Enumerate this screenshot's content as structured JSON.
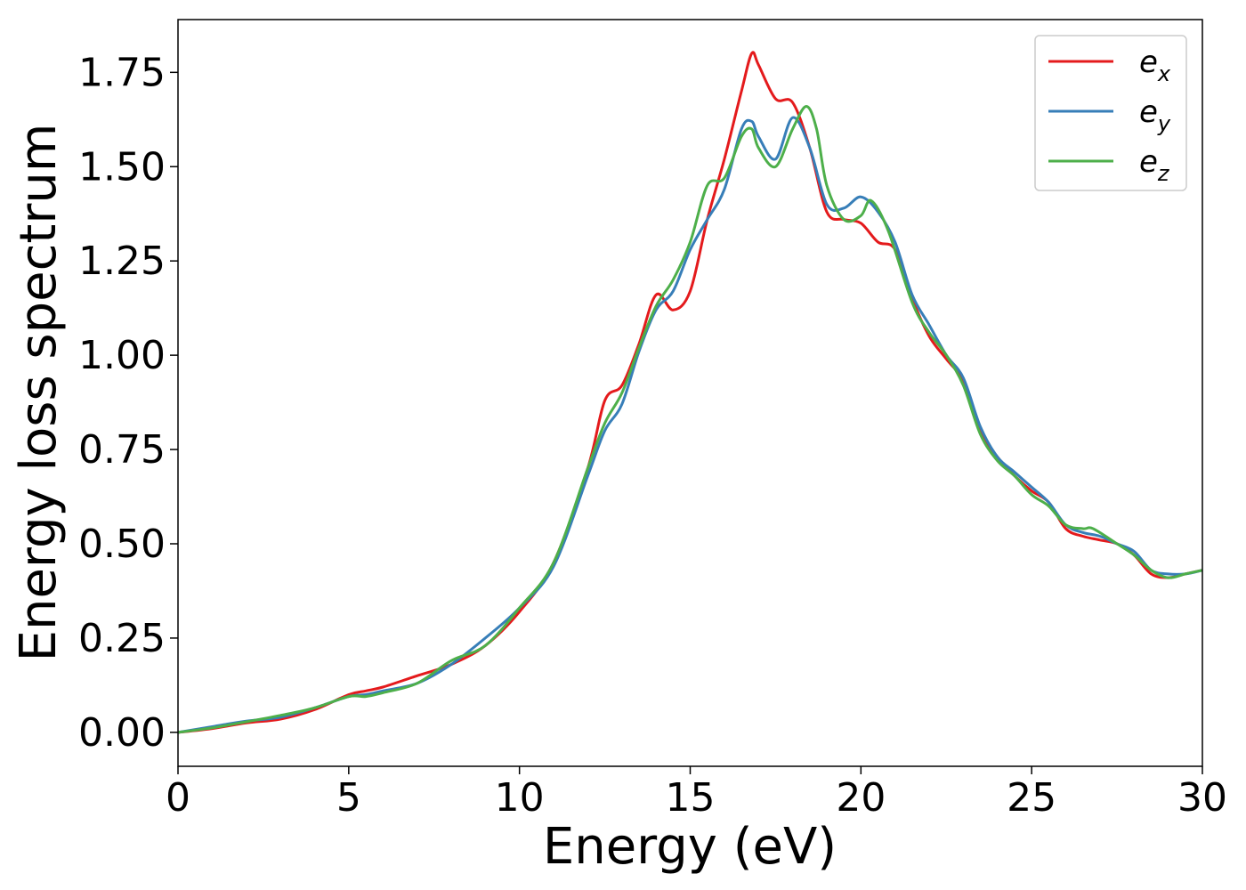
{
  "chart_data": {
    "type": "line",
    "title": "",
    "xlabel": "Energy (eV)",
    "ylabel": "Energy loss spectrum",
    "xlim": [
      0,
      30
    ],
    "ylim": [
      -0.09,
      1.89
    ],
    "xticks": [
      0,
      5,
      10,
      15,
      20,
      25,
      30
    ],
    "xtick_labels": [
      "0",
      "5",
      "10",
      "15",
      "20",
      "25",
      "30"
    ],
    "yticks": [
      0,
      0.25,
      0.5,
      0.75,
      1.0,
      1.25,
      1.5,
      1.75
    ],
    "ytick_labels": [
      "0.00",
      "0.25",
      "0.50",
      "0.75",
      "1.00",
      "1.25",
      "1.50",
      "1.75"
    ],
    "grid": false,
    "legend_position": "top-right",
    "series": [
      {
        "name": "e_x",
        "label_main": "e",
        "label_sub": "x",
        "color": "#e41a1c",
        "points": [
          [
            0,
            0
          ],
          [
            1,
            0.01
          ],
          [
            2,
            0.025
          ],
          [
            3,
            0.035
          ],
          [
            4,
            0.06
          ],
          [
            5,
            0.1
          ],
          [
            5.5,
            0.11
          ],
          [
            6,
            0.12
          ],
          [
            7,
            0.15
          ],
          [
            8,
            0.18
          ],
          [
            9,
            0.23
          ],
          [
            10,
            0.32
          ],
          [
            11,
            0.45
          ],
          [
            12,
            0.7
          ],
          [
            12.5,
            0.88
          ],
          [
            13,
            0.92
          ],
          [
            13.5,
            1.03
          ],
          [
            14,
            1.16
          ],
          [
            14.5,
            1.12
          ],
          [
            15,
            1.17
          ],
          [
            15.5,
            1.36
          ],
          [
            16,
            1.52
          ],
          [
            16.5,
            1.7
          ],
          [
            16.8,
            1.8
          ],
          [
            17,
            1.77
          ],
          [
            17.5,
            1.68
          ],
          [
            18,
            1.67
          ],
          [
            18.5,
            1.55
          ],
          [
            19,
            1.38
          ],
          [
            19.5,
            1.36
          ],
          [
            20,
            1.35
          ],
          [
            20.5,
            1.3
          ],
          [
            21,
            1.28
          ],
          [
            21.5,
            1.15
          ],
          [
            22,
            1.05
          ],
          [
            22.5,
            0.99
          ],
          [
            23,
            0.93
          ],
          [
            23.5,
            0.8
          ],
          [
            24,
            0.73
          ],
          [
            24.5,
            0.68
          ],
          [
            25,
            0.64
          ],
          [
            25.5,
            0.61
          ],
          [
            26,
            0.54
          ],
          [
            26.5,
            0.52
          ],
          [
            27,
            0.51
          ],
          [
            27.5,
            0.5
          ],
          [
            28,
            0.47
          ],
          [
            28.5,
            0.42
          ],
          [
            29,
            0.41
          ],
          [
            29.5,
            0.42
          ],
          [
            30,
            0.43
          ]
        ]
      },
      {
        "name": "e_y",
        "label_main": "e",
        "label_sub": "y",
        "color": "#377eb8",
        "points": [
          [
            0,
            0
          ],
          [
            1,
            0.015
          ],
          [
            2,
            0.03
          ],
          [
            3,
            0.04
          ],
          [
            4,
            0.065
          ],
          [
            5,
            0.095
          ],
          [
            5.5,
            0.1
          ],
          [
            6,
            0.11
          ],
          [
            7,
            0.13
          ],
          [
            8,
            0.18
          ],
          [
            9,
            0.25
          ],
          [
            10,
            0.33
          ],
          [
            11,
            0.44
          ],
          [
            12,
            0.68
          ],
          [
            12.5,
            0.8
          ],
          [
            13,
            0.87
          ],
          [
            13.5,
            1.01
          ],
          [
            14,
            1.12
          ],
          [
            14.5,
            1.17
          ],
          [
            15,
            1.28
          ],
          [
            15.5,
            1.36
          ],
          [
            16,
            1.44
          ],
          [
            16.5,
            1.6
          ],
          [
            16.8,
            1.62
          ],
          [
            17,
            1.58
          ],
          [
            17.5,
            1.52
          ],
          [
            18,
            1.63
          ],
          [
            18.5,
            1.55
          ],
          [
            19,
            1.4
          ],
          [
            19.5,
            1.39
          ],
          [
            20,
            1.42
          ],
          [
            20.5,
            1.38
          ],
          [
            21,
            1.3
          ],
          [
            21.5,
            1.16
          ],
          [
            22,
            1.08
          ],
          [
            22.5,
            1.0
          ],
          [
            23,
            0.94
          ],
          [
            23.5,
            0.81
          ],
          [
            24,
            0.73
          ],
          [
            24.5,
            0.69
          ],
          [
            25,
            0.65
          ],
          [
            25.5,
            0.61
          ],
          [
            26,
            0.55
          ],
          [
            26.5,
            0.53
          ],
          [
            27,
            0.52
          ],
          [
            27.5,
            0.5
          ],
          [
            28,
            0.48
          ],
          [
            28.5,
            0.43
          ],
          [
            29,
            0.42
          ],
          [
            29.5,
            0.42
          ],
          [
            30,
            0.43
          ]
        ]
      },
      {
        "name": "e_z",
        "label_main": "e",
        "label_sub": "z",
        "color": "#4daf4a",
        "points": [
          [
            0,
            0
          ],
          [
            1,
            0.012
          ],
          [
            2,
            0.028
          ],
          [
            3,
            0.045
          ],
          [
            4,
            0.065
          ],
          [
            5,
            0.095
          ],
          [
            5.5,
            0.095
          ],
          [
            6,
            0.105
          ],
          [
            7,
            0.13
          ],
          [
            8,
            0.19
          ],
          [
            9,
            0.23
          ],
          [
            10,
            0.33
          ],
          [
            11,
            0.45
          ],
          [
            12,
            0.7
          ],
          [
            12.5,
            0.82
          ],
          [
            13,
            0.9
          ],
          [
            13.5,
            1.02
          ],
          [
            14,
            1.13
          ],
          [
            14.5,
            1.2
          ],
          [
            15,
            1.3
          ],
          [
            15.5,
            1.45
          ],
          [
            16,
            1.47
          ],
          [
            16.5,
            1.58
          ],
          [
            16.8,
            1.6
          ],
          [
            17,
            1.55
          ],
          [
            17.5,
            1.5
          ],
          [
            18,
            1.6
          ],
          [
            18.4,
            1.66
          ],
          [
            18.7,
            1.6
          ],
          [
            19,
            1.45
          ],
          [
            19.5,
            1.36
          ],
          [
            20,
            1.37
          ],
          [
            20.3,
            1.41
          ],
          [
            20.8,
            1.33
          ],
          [
            21.5,
            1.14
          ],
          [
            22,
            1.06
          ],
          [
            22.5,
            1.0
          ],
          [
            23,
            0.92
          ],
          [
            23.5,
            0.79
          ],
          [
            24,
            0.72
          ],
          [
            24.5,
            0.68
          ],
          [
            25,
            0.63
          ],
          [
            25.5,
            0.6
          ],
          [
            26,
            0.55
          ],
          [
            26.5,
            0.54
          ],
          [
            26.8,
            0.54
          ],
          [
            27.5,
            0.5
          ],
          [
            28,
            0.47
          ],
          [
            28.5,
            0.43
          ],
          [
            29,
            0.41
          ],
          [
            29.5,
            0.42
          ],
          [
            30,
            0.43
          ]
        ]
      }
    ]
  }
}
